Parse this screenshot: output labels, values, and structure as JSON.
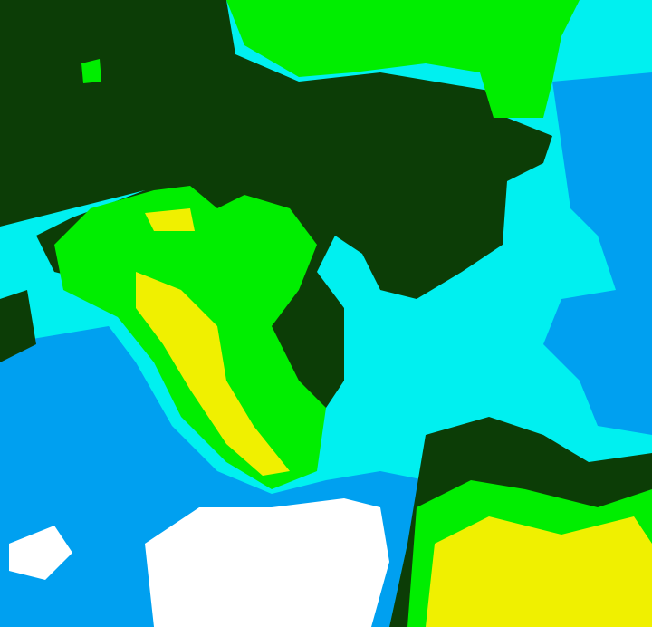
{
  "image": {
    "type": "classified-satellite-imagery",
    "colors": {
      "background_cyan": "#00f0f0",
      "dark_green": "#0c3d06",
      "bright_green": "#00ee00",
      "yellow": "#f0f000",
      "blue": "#00a0f0",
      "white": "#ffffff"
    }
  }
}
